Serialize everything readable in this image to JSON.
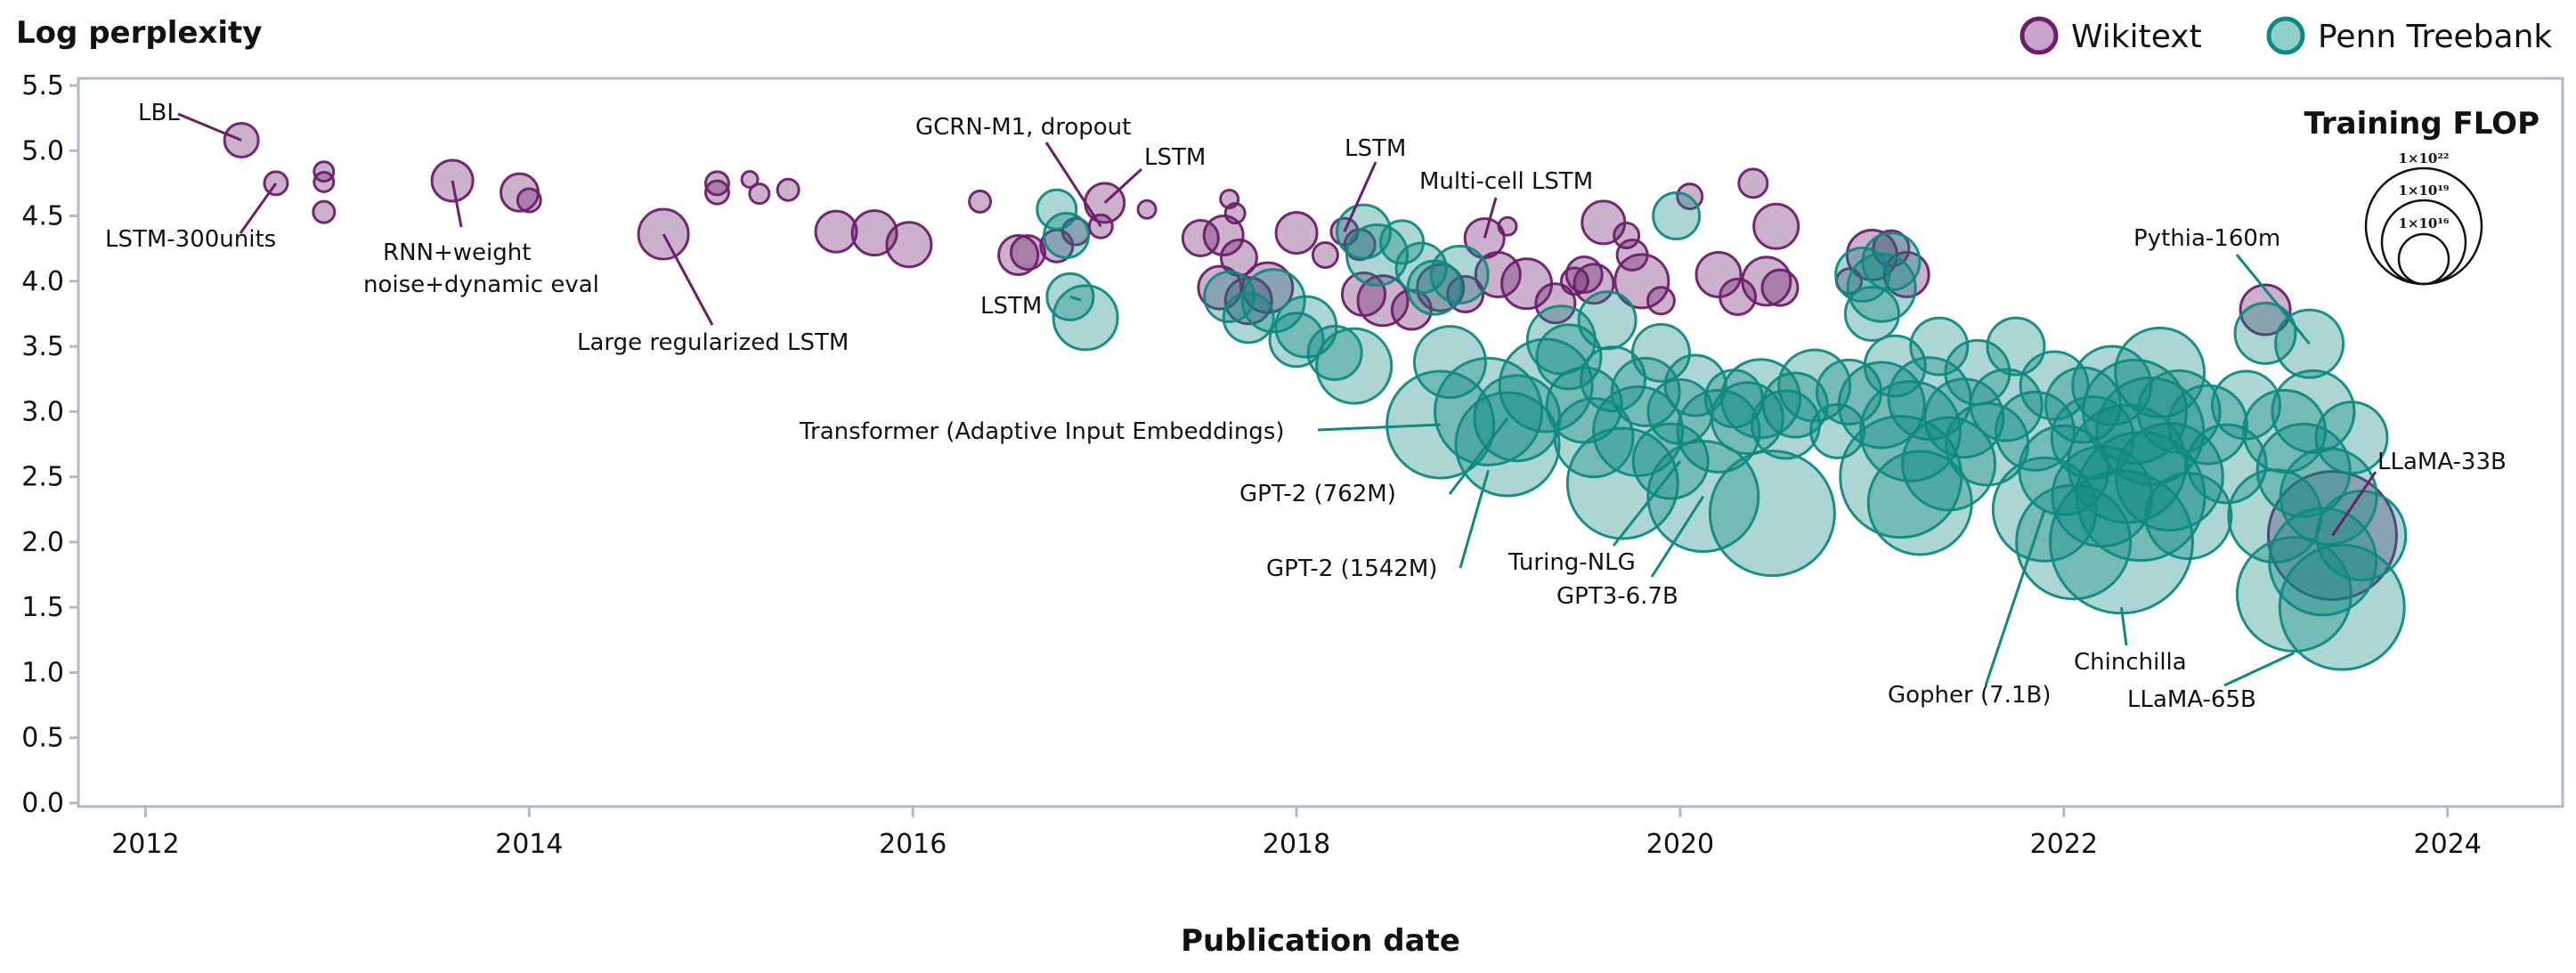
{
  "colors": {
    "wikitext": "#6b1f6b",
    "penn": "#0f8a80",
    "frame": "#aebbc4",
    "leader": "#0f8a80",
    "leader_wiki": "#6b1f6b"
  },
  "chart_data": {
    "type": "scatter",
    "title": "",
    "ylabel": "Log perplexity",
    "xlabel": "Publication date",
    "xlim": [
      2011.65,
      2024.6
    ],
    "ylim": [
      0,
      5.5
    ],
    "x_ticks": [
      2012,
      2014,
      2016,
      2018,
      2020,
      2022,
      2024
    ],
    "y_ticks": [
      0.0,
      0.5,
      1.0,
      1.5,
      2.0,
      2.5,
      3.0,
      3.5,
      4.0,
      4.5,
      5.0,
      5.5
    ],
    "x_tick_labels": [
      "2012",
      "2014",
      "2016",
      "2018",
      "2020",
      "2022",
      "2024"
    ],
    "y_tick_labels": [
      "0.0",
      "0.5",
      "1.0",
      "1.5",
      "2.0",
      "2.5",
      "3.0",
      "3.5",
      "4.0",
      "4.5",
      "5.0",
      "5.5"
    ],
    "legend": [
      {
        "name": "Wikitext",
        "color_key": "wikitext"
      },
      {
        "name": "Penn Treebank",
        "color_key": "penn"
      }
    ],
    "size_legend": {
      "title": "Training FLOP",
      "labels": [
        "1×10²²",
        "1×10¹⁹",
        "1×10¹⁶"
      ]
    },
    "series": [
      {
        "name": "Wikitext",
        "points": [
          [
            2012.5,
            5.08,
            19
          ],
          [
            2012.68,
            4.75,
            13
          ],
          [
            2012.93,
            4.84,
            11
          ],
          [
            2012.93,
            4.76,
            11
          ],
          [
            2012.93,
            4.53,
            12
          ],
          [
            2013.6,
            4.77,
            23
          ],
          [
            2013.95,
            4.68,
            21
          ],
          [
            2014.0,
            4.62,
            13
          ],
          [
            2014.7,
            4.36,
            28
          ],
          [
            2014.98,
            4.75,
            13
          ],
          [
            2014.98,
            4.68,
            13
          ],
          [
            2015.15,
            4.78,
            9
          ],
          [
            2015.2,
            4.67,
            11
          ],
          [
            2015.35,
            4.7,
            12
          ],
          [
            2015.6,
            4.38,
            23
          ],
          [
            2015.8,
            4.37,
            25
          ],
          [
            2015.98,
            4.28,
            25
          ],
          [
            2016.35,
            4.61,
            12
          ],
          [
            2016.55,
            4.2,
            22
          ],
          [
            2016.6,
            4.22,
            19
          ],
          [
            2016.75,
            4.27,
            18
          ],
          [
            2016.85,
            4.38,
            15
          ],
          [
            2016.98,
            4.42,
            13
          ],
          [
            2017.0,
            4.6,
            22
          ],
          [
            2017.22,
            4.55,
            10
          ],
          [
            2017.5,
            4.33,
            20
          ],
          [
            2017.62,
            4.35,
            22
          ],
          [
            2017.65,
            4.63,
            10
          ],
          [
            2017.68,
            4.52,
            11
          ],
          [
            2017.7,
            4.18,
            20
          ],
          [
            2017.6,
            3.95,
            24
          ],
          [
            2017.75,
            3.85,
            26
          ],
          [
            2017.85,
            3.95,
            28
          ],
          [
            2018.0,
            4.37,
            23
          ],
          [
            2018.15,
            4.2,
            14
          ],
          [
            2018.25,
            4.38,
            15
          ],
          [
            2018.33,
            4.28,
            17
          ],
          [
            2018.35,
            3.9,
            24
          ],
          [
            2018.45,
            3.85,
            28
          ],
          [
            2018.6,
            3.78,
            22
          ],
          [
            2018.75,
            3.95,
            26
          ],
          [
            2018.88,
            3.9,
            20
          ],
          [
            2018.98,
            4.33,
            22
          ],
          [
            2019.05,
            4.05,
            25
          ],
          [
            2019.1,
            4.42,
            10
          ],
          [
            2019.2,
            3.98,
            28
          ],
          [
            2019.35,
            3.83,
            22
          ],
          [
            2019.45,
            4.0,
            15
          ],
          [
            2019.5,
            4.05,
            20
          ],
          [
            2019.55,
            3.98,
            22
          ],
          [
            2019.6,
            4.45,
            24
          ],
          [
            2019.72,
            4.35,
            14
          ],
          [
            2019.75,
            4.2,
            17
          ],
          [
            2019.8,
            4.0,
            30
          ],
          [
            2019.9,
            3.85,
            15
          ],
          [
            2020.05,
            4.65,
            14
          ],
          [
            2020.2,
            4.05,
            25
          ],
          [
            2020.3,
            3.88,
            20
          ],
          [
            2020.38,
            4.75,
            16
          ],
          [
            2020.45,
            4.0,
            27
          ],
          [
            2020.5,
            4.42,
            25
          ],
          [
            2020.52,
            3.95,
            20
          ],
          [
            2020.88,
            4.0,
            14
          ],
          [
            2021.0,
            4.2,
            28
          ],
          [
            2021.1,
            4.25,
            20
          ],
          [
            2021.18,
            4.05,
            25
          ],
          [
            2023.05,
            3.78,
            28
          ],
          [
            2023.4,
            2.05,
            72
          ]
        ]
      },
      {
        "name": "Penn Treebank",
        "points": [
          [
            2016.75,
            4.55,
            22
          ],
          [
            2016.8,
            4.35,
            25
          ],
          [
            2016.82,
            3.88,
            26
          ],
          [
            2016.9,
            3.72,
            36
          ],
          [
            2017.65,
            3.88,
            28
          ],
          [
            2017.75,
            3.72,
            28
          ],
          [
            2017.88,
            3.85,
            35
          ],
          [
            2018.0,
            3.55,
            30
          ],
          [
            2018.05,
            3.65,
            34
          ],
          [
            2018.2,
            3.45,
            30
          ],
          [
            2018.3,
            3.35,
            42
          ],
          [
            2018.35,
            4.38,
            30
          ],
          [
            2018.42,
            4.2,
            34
          ],
          [
            2018.55,
            4.3,
            24
          ],
          [
            2018.65,
            4.1,
            28
          ],
          [
            2018.72,
            3.95,
            30
          ],
          [
            2018.85,
            4.05,
            32
          ],
          [
            2018.8,
            3.38,
            40
          ],
          [
            2018.75,
            2.9,
            60
          ],
          [
            2019.0,
            3.0,
            60
          ],
          [
            2019.1,
            2.75,
            58
          ],
          [
            2019.15,
            2.95,
            48
          ],
          [
            2019.3,
            3.2,
            52
          ],
          [
            2019.38,
            3.55,
            38
          ],
          [
            2019.42,
            3.42,
            36
          ],
          [
            2019.5,
            3.05,
            42
          ],
          [
            2019.55,
            2.8,
            44
          ],
          [
            2019.62,
            3.7,
            32
          ],
          [
            2019.65,
            3.25,
            36
          ],
          [
            2019.7,
            2.45,
            62
          ],
          [
            2019.78,
            2.85,
            50
          ],
          [
            2019.82,
            3.15,
            38
          ],
          [
            2019.9,
            3.45,
            32
          ],
          [
            2019.95,
            2.62,
            42
          ],
          [
            2019.98,
            4.5,
            26
          ],
          [
            2020.0,
            3.0,
            36
          ],
          [
            2020.08,
            3.2,
            34
          ],
          [
            2020.12,
            2.35,
            62
          ],
          [
            2020.2,
            2.85,
            46
          ],
          [
            2020.28,
            3.1,
            32
          ],
          [
            2020.35,
            2.95,
            40
          ],
          [
            2020.42,
            3.1,
            44
          ],
          [
            2020.48,
            2.22,
            70
          ],
          [
            2020.55,
            2.9,
            38
          ],
          [
            2020.6,
            3.05,
            36
          ],
          [
            2020.7,
            3.2,
            40
          ],
          [
            2020.82,
            2.85,
            30
          ],
          [
            2020.88,
            3.15,
            36
          ],
          [
            2020.95,
            4.05,
            30
          ],
          [
            2021.0,
            3.75,
            30
          ],
          [
            2021.05,
            3.95,
            38
          ],
          [
            2021.1,
            4.15,
            32
          ],
          [
            2021.05,
            3.05,
            48
          ],
          [
            2021.12,
            3.35,
            34
          ],
          [
            2021.15,
            2.5,
            68
          ],
          [
            2021.2,
            2.85,
            56
          ],
          [
            2021.25,
            2.3,
            58
          ],
          [
            2021.3,
            3.1,
            46
          ],
          [
            2021.35,
            3.5,
            32
          ],
          [
            2021.4,
            2.6,
            52
          ],
          [
            2021.48,
            2.95,
            44
          ],
          [
            2021.55,
            3.3,
            36
          ],
          [
            2021.6,
            2.75,
            46
          ],
          [
            2021.7,
            3.05,
            40
          ],
          [
            2021.75,
            3.5,
            32
          ],
          [
            2021.85,
            2.85,
            44
          ],
          [
            2021.9,
            2.25,
            58
          ],
          [
            2021.95,
            3.2,
            38
          ],
          [
            2022.0,
            2.55,
            50
          ],
          [
            2022.05,
            2.0,
            64
          ],
          [
            2022.1,
            3.05,
            42
          ],
          [
            2022.15,
            2.8,
            46
          ],
          [
            2022.2,
            2.35,
            56
          ],
          [
            2022.25,
            3.2,
            44
          ],
          [
            2022.3,
            2.0,
            80
          ],
          [
            2022.33,
            2.6,
            66
          ],
          [
            2022.37,
            3.0,
            58
          ],
          [
            2022.4,
            2.35,
            72
          ],
          [
            2022.45,
            2.85,
            60
          ],
          [
            2022.5,
            3.3,
            50
          ],
          [
            2022.55,
            2.5,
            60
          ],
          [
            2022.6,
            3.0,
            46
          ],
          [
            2022.65,
            2.2,
            48
          ],
          [
            2022.75,
            2.9,
            44
          ],
          [
            2022.85,
            2.6,
            44
          ],
          [
            2022.95,
            3.05,
            38
          ],
          [
            2023.05,
            3.6,
            34
          ],
          [
            2023.1,
            2.2,
            52
          ],
          [
            2023.15,
            2.85,
            46
          ],
          [
            2023.2,
            1.6,
            64
          ],
          [
            2023.25,
            2.55,
            52
          ],
          [
            2023.3,
            3.0,
            46
          ],
          [
            2023.35,
            1.85,
            60
          ],
          [
            2023.28,
            3.52,
            38
          ],
          [
            2023.38,
            2.35,
            54
          ],
          [
            2023.45,
            1.5,
            70
          ],
          [
            2023.5,
            2.8,
            40
          ],
          [
            2023.55,
            2.05,
            50
          ]
        ]
      }
    ],
    "annotations": [
      {
        "text": "LBL",
        "x": 2012.5,
        "y": 5.08
      },
      {
        "text": "LSTM-300units",
        "x": 2012.68,
        "y": 4.75
      },
      {
        "text": "RNN+weight",
        "x": 2013.6,
        "y": 4.77
      },
      {
        "text": "noise+dynamic eval",
        "x": 2013.6,
        "y": 4.77
      },
      {
        "text": "Large regularized LSTM",
        "x": 2014.7,
        "y": 4.36
      },
      {
        "text": "GCRN-M1, dropout",
        "x": 2016.98,
        "y": 4.42
      },
      {
        "text": "LSTM",
        "x": 2017.0,
        "y": 4.6
      },
      {
        "text": "LSTM",
        "x": 2016.82,
        "y": 3.88
      },
      {
        "text": "LSTM",
        "x": 2018.25,
        "y": 4.38
      },
      {
        "text": "Multi-cell LSTM",
        "x": 2018.98,
        "y": 4.33
      },
      {
        "text": "Transformer (Adaptive Input Embeddings)",
        "x": 2018.75,
        "y": 2.9
      },
      {
        "text": "GPT-2 (762M)",
        "x": 2019.1,
        "y": 2.95
      },
      {
        "text": "GPT-2 (1542M)",
        "x": 2019.0,
        "y": 2.55
      },
      {
        "text": "Turing-NLG",
        "x": 2020.0,
        "y": 2.62
      },
      {
        "text": "GPT3-6.7B",
        "x": 2020.12,
        "y": 2.35
      },
      {
        "text": "Gopher (7.1B)",
        "x": 2021.9,
        "y": 2.25
      },
      {
        "text": "Chinchilla",
        "x": 2022.3,
        "y": 1.5
      },
      {
        "text": "LLaMA-65B",
        "x": 2023.2,
        "y": 1.15
      },
      {
        "text": "LLaMA-33B",
        "x": 2023.4,
        "y": 2.05
      },
      {
        "text": "Pythia-160m",
        "x": 2023.28,
        "y": 3.52
      }
    ]
  }
}
